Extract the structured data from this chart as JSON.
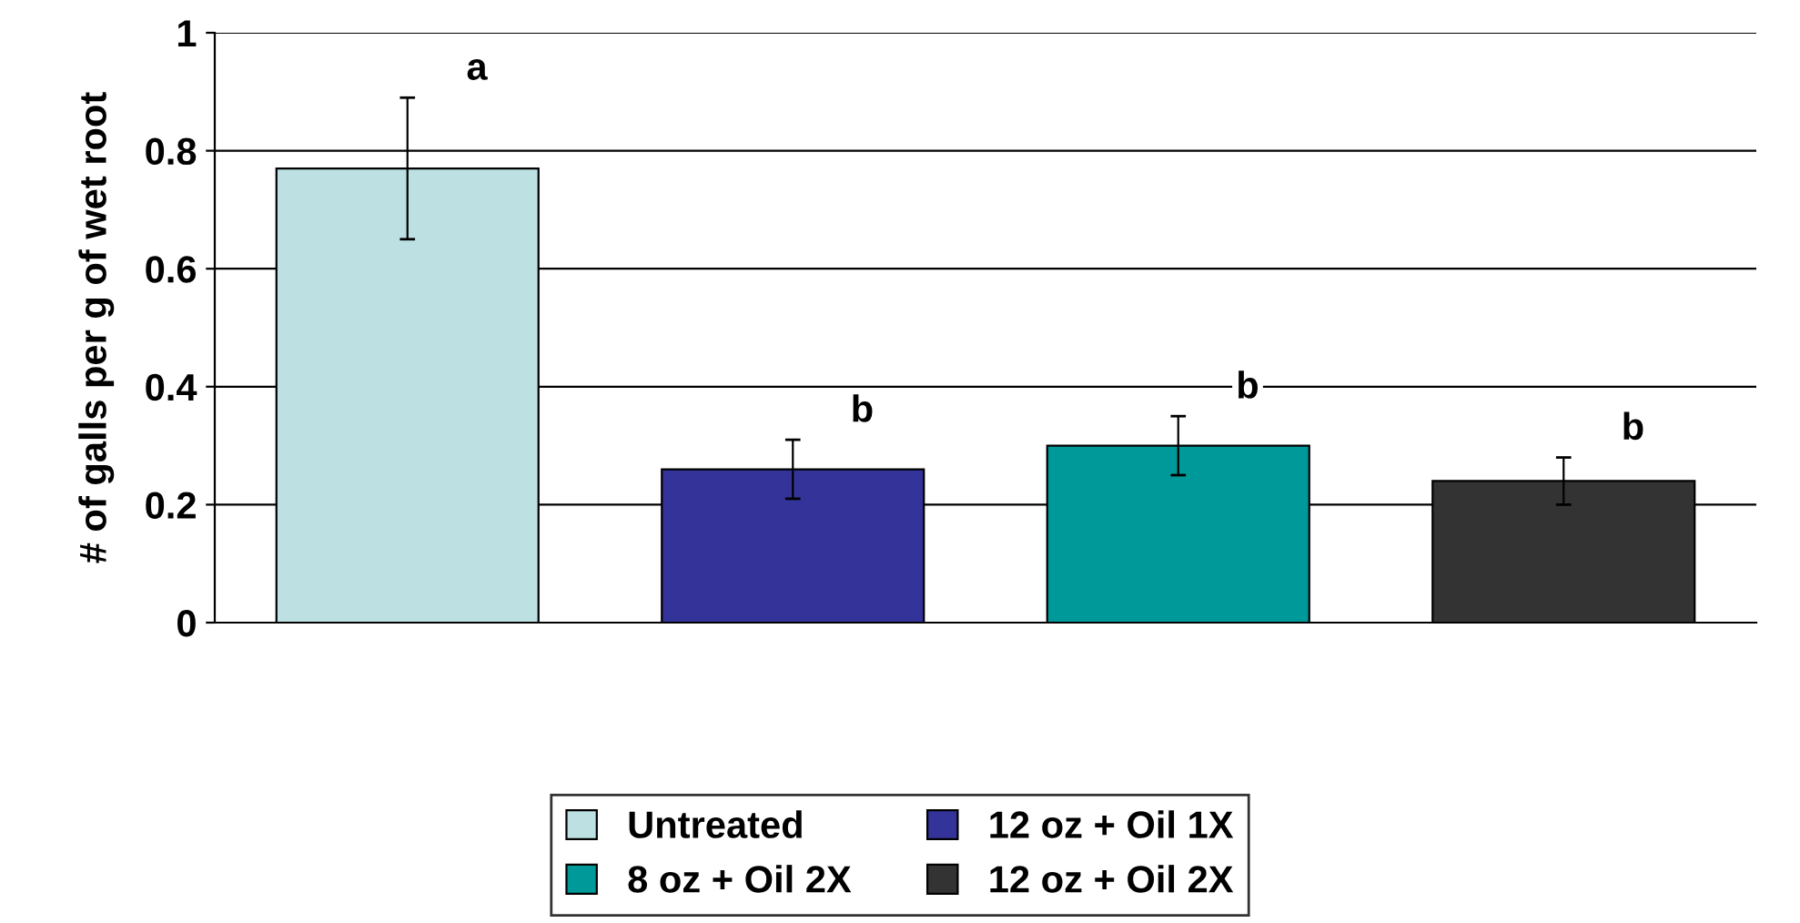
{
  "chart_data": {
    "type": "bar",
    "ylabel": "# of galls per g of wet root",
    "categories": [
      null,
      null,
      null,
      null
    ],
    "series": [
      {
        "name": "Untreated",
        "color": "#bde0e3",
        "values": [
          0.77,
          null,
          null,
          null
        ],
        "errors": [
          0.12,
          null,
          null,
          null
        ]
      },
      {
        "name": "12 oz + Oil 1X",
        "color": "#333399",
        "values": [
          null,
          0.26,
          null,
          null
        ],
        "errors": [
          null,
          0.05,
          null,
          null
        ]
      },
      {
        "name": "8 oz + Oil 2X",
        "color": "#009999",
        "values": [
          null,
          null,
          0.3,
          null
        ],
        "errors": [
          null,
          null,
          0.05,
          null
        ]
      },
      {
        "name": "12 oz + Oil 2X",
        "color": "#333333",
        "values": [
          null,
          null,
          null,
          0.24
        ],
        "errors": [
          null,
          null,
          null,
          0.04
        ]
      }
    ],
    "annotations": [
      "a",
      "b",
      "b",
      "b"
    ],
    "ylim": [
      0,
      1
    ],
    "yticks": [
      0,
      0.2,
      0.4,
      0.6,
      0.8,
      1
    ],
    "grid": "y",
    "legend": "bottom"
  }
}
